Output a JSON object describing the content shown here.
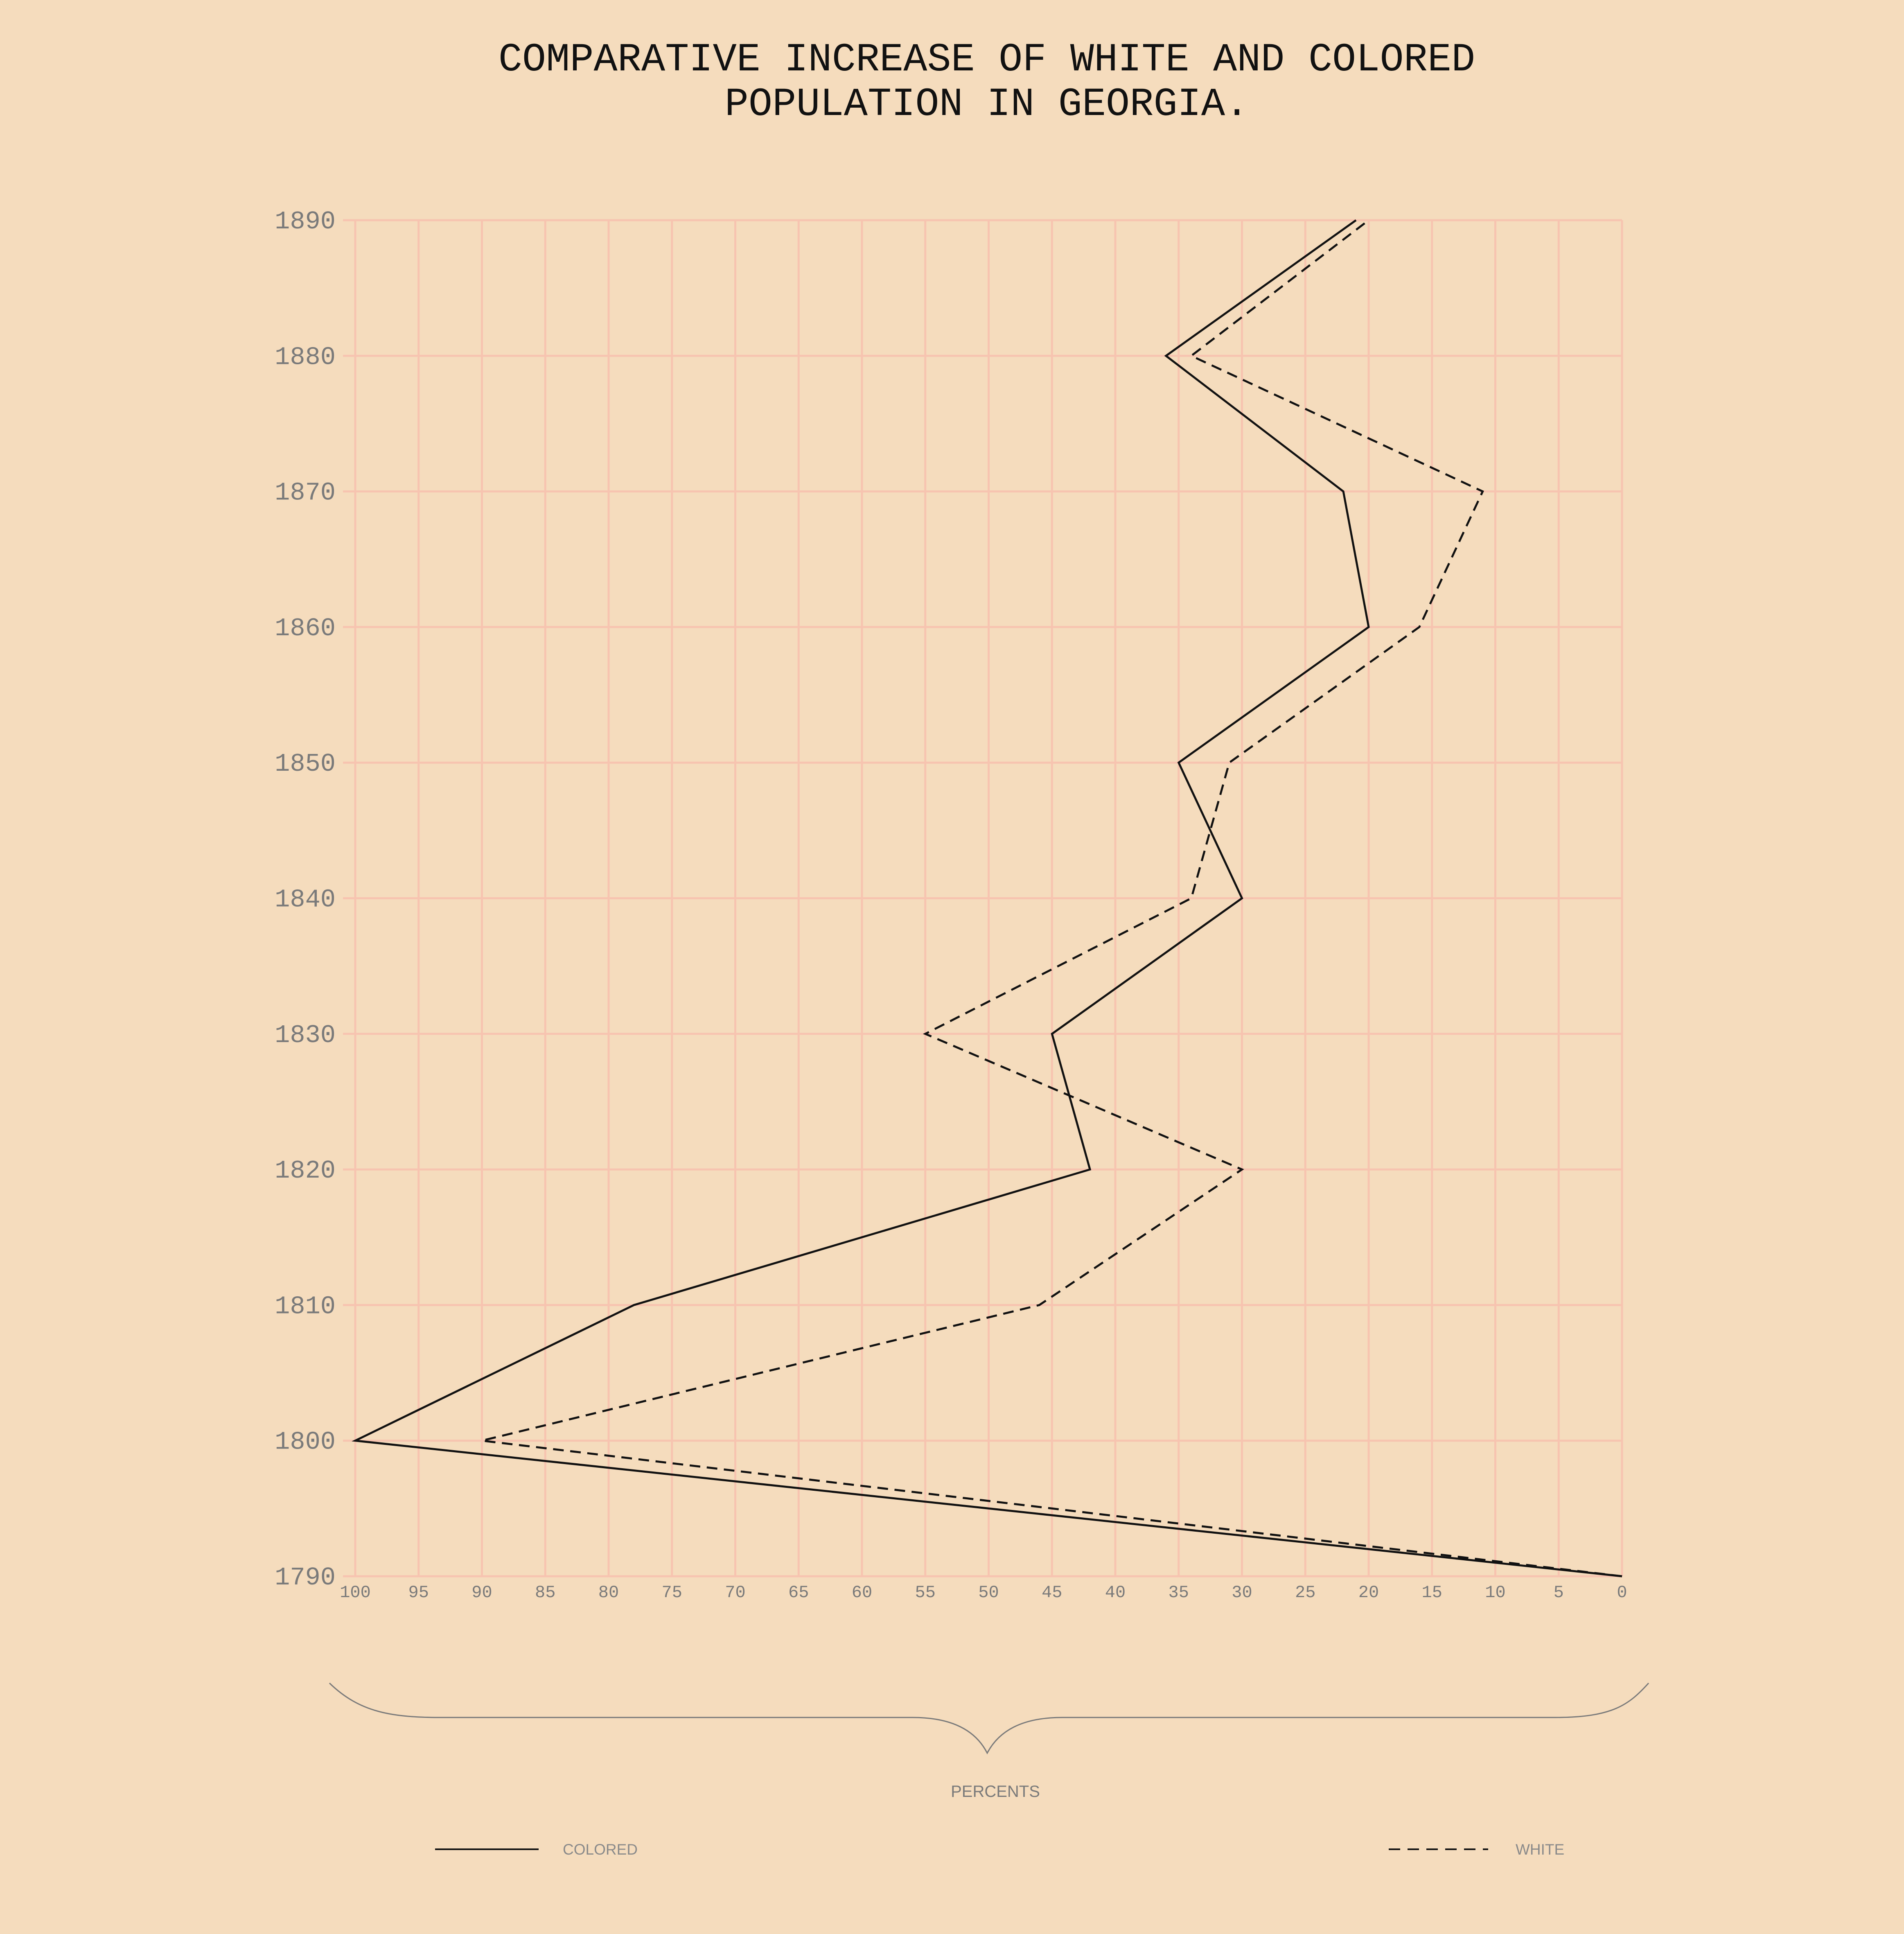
{
  "chart_data": {
    "type": "line",
    "title_lines": [
      "COMPARATIVE INCREASE OF WHITE AND COLORED",
      "POPULATION IN GEORGIA."
    ],
    "xlabel": "PERCENTS",
    "xlim": [
      100,
      0
    ],
    "ylim": [
      1790,
      1890
    ],
    "x_ticks": [
      100,
      95,
      90,
      85,
      80,
      75,
      70,
      65,
      60,
      55,
      50,
      45,
      40,
      35,
      30,
      25,
      20,
      15,
      10,
      5,
      0
    ],
    "y_ticks": [
      1890,
      1880,
      1870,
      1860,
      1850,
      1840,
      1830,
      1820,
      1810,
      1800,
      1790
    ],
    "grid": true,
    "legend_position": "bottom",
    "series": [
      {
        "name": "COLORED",
        "line_style": "solid",
        "color": "#111111",
        "points": [
          {
            "year": 1790,
            "percent": 0
          },
          {
            "year": 1800,
            "percent": 100
          },
          {
            "year": 1810,
            "percent": 78
          },
          {
            "year": 1820,
            "percent": 42
          },
          {
            "year": 1830,
            "percent": 45
          },
          {
            "year": 1840,
            "percent": 30
          },
          {
            "year": 1850,
            "percent": 35
          },
          {
            "year": 1860,
            "percent": 20
          },
          {
            "year": 1870,
            "percent": 22
          },
          {
            "year": 1880,
            "percent": 36
          },
          {
            "year": 1890,
            "percent": 21
          }
        ]
      },
      {
        "name": "WHITE",
        "line_style": "dashed",
        "color": "#111111",
        "points": [
          {
            "year": 1790,
            "percent": 0
          },
          {
            "year": 1800,
            "percent": 90
          },
          {
            "year": 1810,
            "percent": 46
          },
          {
            "year": 1820,
            "percent": 30
          },
          {
            "year": 1830,
            "percent": 55
          },
          {
            "year": 1840,
            "percent": 34
          },
          {
            "year": 1850,
            "percent": 31
          },
          {
            "year": 1860,
            "percent": 16
          },
          {
            "year": 1870,
            "percent": 11
          },
          {
            "year": 1880,
            "percent": 34
          },
          {
            "year": 1890,
            "percent": 20
          }
        ]
      }
    ]
  },
  "colors": {
    "background": "#f5dcbd",
    "grid": "#f7c4b0",
    "tick_text": "#7a7a7a",
    "lines": "#111111",
    "brace": "#7a7a7a"
  }
}
